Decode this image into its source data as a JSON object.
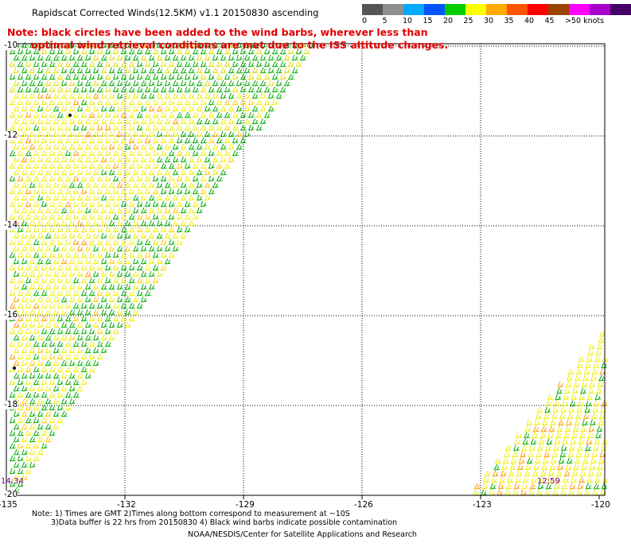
{
  "title": "Rapidscat Corrected Winds(12.5KM) v1.1 20150830 ascending",
  "note": {
    "line1": "Note: black circles have been added to the wind barbs, wherever less than",
    "line2": "optimal wind retrieval conditions are met due to the ISS altitude changes."
  },
  "legend": {
    "colors": [
      "#555555",
      "#909090",
      "#00aaff",
      "#0055ff",
      "#00cc00",
      "#ffff00",
      "#ffaa00",
      "#ff5500",
      "#ff0000",
      "#994400",
      "#ff00ff",
      "#aa00cc",
      "#440066"
    ],
    "labels": [
      "0",
      "5",
      "10",
      "15",
      "20",
      "25",
      "30",
      "35",
      "40",
      "45",
      ">50 knots"
    ]
  },
  "axes": {
    "x_labels": [
      "-135",
      "-132",
      "-129",
      "-126",
      "-123",
      "-120"
    ],
    "y_labels": [
      "-10",
      "-12",
      "-14",
      "-16",
      "-18",
      "-20"
    ]
  },
  "swath_times": [
    "14:34",
    "12:59"
  ],
  "footnote": {
    "line1": "Note: 1) Times are GMT 2)Times along bottom correspond to measurement at ~10S",
    "line2": "3)Data buffer is 22 hrs from 20150830 4) Black wind barbs indicate possible contamination"
  },
  "credit": "NOAA/NESDIS/Center for Satellite Applications and Research"
}
